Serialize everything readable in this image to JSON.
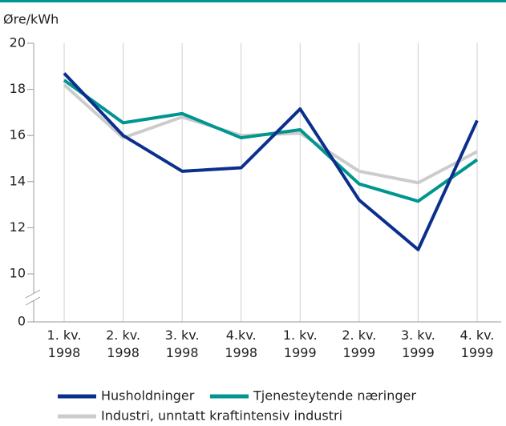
{
  "chart_data": {
    "type": "line",
    "y_label": "Øre/kWh",
    "categories": [
      "1. kv.\n1998",
      "2. kv.\n1998",
      "3. kv.\n1998",
      "4.kv.\n1998",
      "1. kv.\n1999",
      "2. kv.\n1999",
      "3. kv.\n1999",
      "4. kv.\n1999"
    ],
    "series": [
      {
        "name": "Husholdninger",
        "color": "#0b2f8c",
        "values": [
          18.7,
          16.0,
          14.45,
          14.6,
          17.15,
          13.2,
          11.05,
          16.65
        ]
      },
      {
        "name": "Tjenesteytende næringer",
        "color": "#00968f",
        "values": [
          18.4,
          16.55,
          16.95,
          15.9,
          16.25,
          13.9,
          13.15,
          14.95
        ]
      },
      {
        "name": "Industri, unntatt kraftintensiv industri",
        "color": "#cccccc",
        "values": [
          18.2,
          15.9,
          16.8,
          16.0,
          16.1,
          14.45,
          13.95,
          15.3
        ]
      }
    ],
    "ylim": [
      0,
      20
    ],
    "yticks": [
      0,
      10,
      12,
      14,
      16,
      18,
      20
    ],
    "y_axis_break": true,
    "grid": true
  }
}
